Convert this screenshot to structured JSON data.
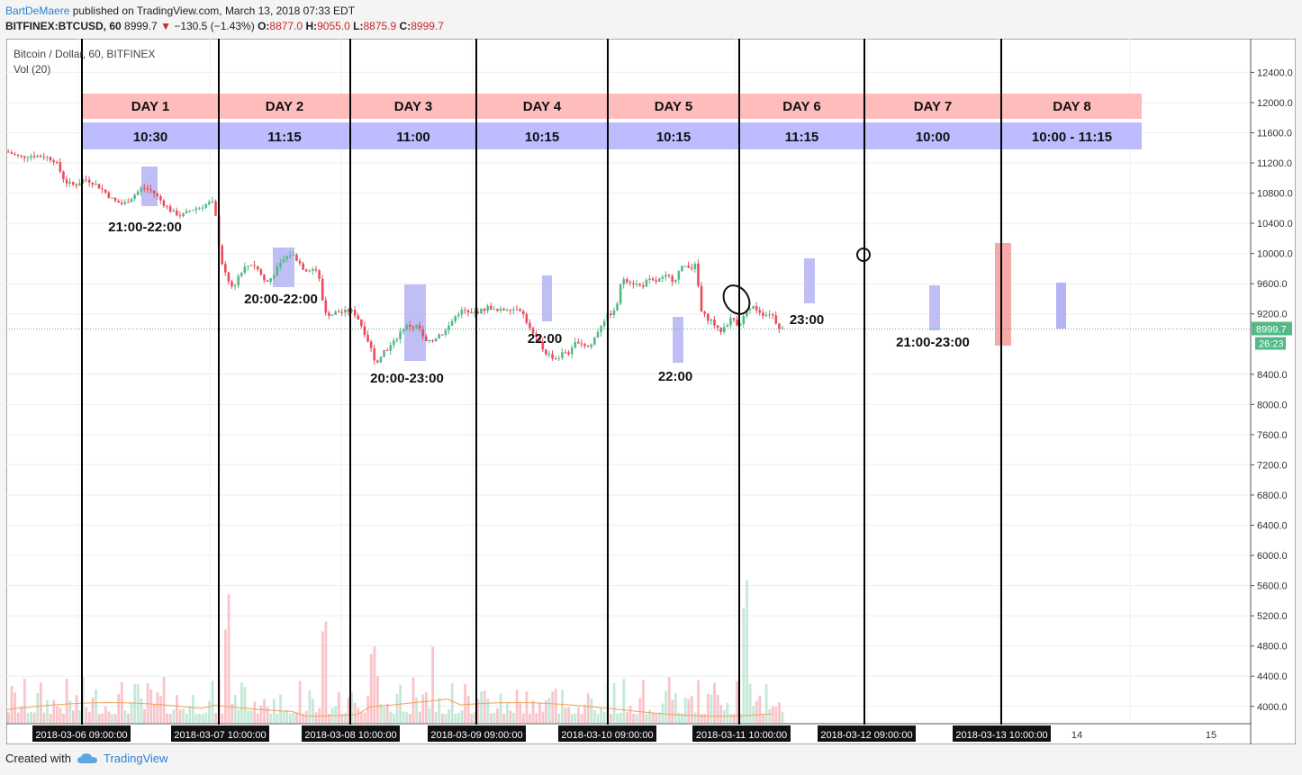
{
  "header": {
    "author": "BartDeMaere",
    "published": "published on TradingView.com, March 13, 2018 07:33 EDT",
    "symbol": "BITFINEX:BTCUSD, 60",
    "last": "8999.7",
    "change": "−130.5 (−1.43%)",
    "o_label": "O:",
    "o": "8877.0",
    "h_label": "H:",
    "h": "9055.0",
    "l_label": "L:",
    "l": "8875.9",
    "c_label": "C:",
    "c": "8999.7"
  },
  "footer": {
    "created": "Created with",
    "brand": "TradingView",
    "icon": "tradingview-cloud-icon"
  },
  "colors": {
    "up": "#53b987",
    "down": "#eb4d5c",
    "day_band": "#ffbcbc",
    "time_band": "#bcbcff",
    "highlight": "#b4b4f5",
    "ma": "#f3a05a",
    "price_line": "#53b987"
  },
  "chart_data": {
    "type": "candlestick",
    "title": "Bitcoin / Dollar, 60, BITFINEX",
    "indicator": "Vol (20)",
    "y_axis": {
      "ticks": [
        4000,
        4400,
        4800,
        5200,
        5600,
        6000,
        6400,
        6800,
        7200,
        7600,
        8000,
        8400,
        9200,
        9600,
        10000,
        10400,
        10800,
        11200,
        11600,
        12000,
        12400
      ],
      "labels": [
        "4000.0",
        "4400.0",
        "4800.0",
        "5200.0",
        "5600.0",
        "6000.0",
        "6400.0",
        "6800.0",
        "7200.0",
        "7600.0",
        "8000.0",
        "8400.0",
        "9200.0",
        "9600.0",
        "10000.0",
        "10400.0",
        "10800.0",
        "11200.0",
        "11600.0",
        "12000.0",
        "12400.0"
      ],
      "last_price": "8999.7",
      "countdown": "26:23"
    },
    "x_axis": {
      "date_labels": [
        "2018-03-06 09:00:00",
        "2018-03-07 10:00:00",
        "2018-03-08 10:00:00",
        "2018-03-09 09:00:00",
        "2018-03-10 09:00:00",
        "2018-03-11 10:00:00",
        "2018-03-12 09:00:00",
        "2018-03-13 10:00:00"
      ],
      "day_ticks": [
        "14",
        "15"
      ]
    },
    "days": [
      {
        "day": "DAY 1",
        "time": "10:30",
        "low_window": "21:00-22:00"
      },
      {
        "day": "DAY 2",
        "time": "11:15",
        "low_window": "20:00-22:00"
      },
      {
        "day": "DAY 3",
        "time": "11:00",
        "low_window": "20:00-23:00"
      },
      {
        "day": "DAY 4",
        "time": "10:15",
        "low_window": "22:00"
      },
      {
        "day": "DAY 5",
        "time": "10:15",
        "low_window": "22:00"
      },
      {
        "day": "DAY 6",
        "time": "11:15",
        "low_window": "23:00"
      },
      {
        "day": "DAY 7",
        "time": "10:00",
        "low_window": "21:00-23:00"
      },
      {
        "day": "DAY 8",
        "time": "10:00 - 11:15",
        "low_window": ""
      }
    ],
    "price_path": [
      [
        0,
        11350
      ],
      [
        4,
        11280
      ],
      [
        8,
        11300
      ],
      [
        12,
        11280
      ],
      [
        15,
        11230
      ],
      [
        18,
        10950
      ],
      [
        21,
        10900
      ],
      [
        24,
        10990
      ],
      [
        27,
        10930
      ],
      [
        30,
        10830
      ],
      [
        33,
        10700
      ],
      [
        36,
        10650
      ],
      [
        39,
        10760
      ],
      [
        42,
        10880
      ],
      [
        45,
        10820
      ],
      [
        48,
        10680
      ],
      [
        51,
        10550
      ],
      [
        54,
        10500
      ],
      [
        57,
        10580
      ],
      [
        60,
        10620
      ],
      [
        63,
        10680
      ],
      [
        64,
        10660
      ],
      [
        66,
        9950
      ],
      [
        68,
        9650
      ],
      [
        70,
        9550
      ],
      [
        72,
        9750
      ],
      [
        74,
        9830
      ],
      [
        76,
        9870
      ],
      [
        78,
        9760
      ],
      [
        80,
        9600
      ],
      [
        82,
        9700
      ],
      [
        84,
        9830
      ],
      [
        86,
        9950
      ],
      [
        88,
        10000
      ],
      [
        90,
        9900
      ],
      [
        92,
        9780
      ],
      [
        94,
        9800
      ],
      [
        96,
        9780
      ],
      [
        98,
        9250
      ],
      [
        100,
        9180
      ],
      [
        102,
        9230
      ],
      [
        104,
        9220
      ],
      [
        106,
        9250
      ],
      [
        108,
        9180
      ],
      [
        110,
        9000
      ],
      [
        112,
        8800
      ],
      [
        114,
        8550
      ],
      [
        116,
        8700
      ],
      [
        118,
        8750
      ],
      [
        120,
        8850
      ],
      [
        122,
        9000
      ],
      [
        124,
        9050
      ],
      [
        126,
        9020
      ],
      [
        127,
        9050
      ],
      [
        129,
        8830
      ],
      [
        131,
        8820
      ],
      [
        133,
        8920
      ],
      [
        135,
        8950
      ],
      [
        137,
        9070
      ],
      [
        139,
        9200
      ],
      [
        141,
        9250
      ],
      [
        143,
        9190
      ],
      [
        145,
        9230
      ],
      [
        147,
        9250
      ],
      [
        149,
        9300
      ],
      [
        151,
        9230
      ],
      [
        153,
        9250
      ],
      [
        155,
        9280
      ],
      [
        157,
        9260
      ],
      [
        158,
        9300
      ],
      [
        160,
        9150
      ],
      [
        162,
        8950
      ],
      [
        164,
        8850
      ],
      [
        166,
        8700
      ],
      [
        168,
        8640
      ],
      [
        170,
        8600
      ],
      [
        172,
        8700
      ],
      [
        174,
        8680
      ],
      [
        176,
        8850
      ],
      [
        178,
        8800
      ],
      [
        180,
        8750
      ],
      [
        182,
        8930
      ],
      [
        184,
        9100
      ],
      [
        186,
        9200
      ],
      [
        188,
        9230
      ],
      [
        190,
        9680
      ],
      [
        192,
        9640
      ],
      [
        194,
        9600
      ],
      [
        196,
        9560
      ],
      [
        198,
        9650
      ],
      [
        200,
        9620
      ],
      [
        202,
        9660
      ],
      [
        204,
        9700
      ],
      [
        206,
        9640
      ],
      [
        208,
        9800
      ],
      [
        210,
        9850
      ],
      [
        212,
        9800
      ],
      [
        213,
        9880
      ],
      [
        214,
        9250
      ],
      [
        216,
        9150
      ],
      [
        218,
        9100
      ],
      [
        220,
        8950
      ],
      [
        222,
        9050
      ],
      [
        224,
        9150
      ],
      [
        226,
        9050
      ],
      [
        228,
        9200
      ],
      [
        230,
        9300
      ],
      [
        232,
        9250
      ],
      [
        234,
        9180
      ],
      [
        236,
        9220
      ],
      [
        238,
        9050
      ],
      [
        239,
        8999.7
      ]
    ],
    "volume_ma_note": "Vol (20)"
  }
}
